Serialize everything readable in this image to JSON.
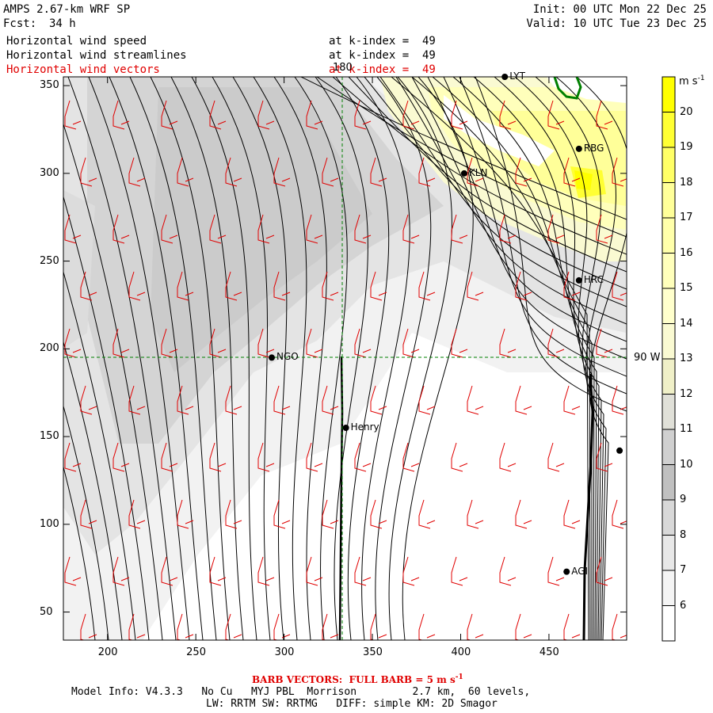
{
  "header": {
    "model": "AMPS 2.67-km WRF SP",
    "fcst_label": "Fcst:",
    "fcst_value": "34 h",
    "init": "Init: 00 UTC Mon 22 Dec 25",
    "valid": "Valid: 10 UTC Tue 23 Dec 25",
    "fields": [
      {
        "name": "Horizontal wind speed",
        "level": "at k-index =  49",
        "color": "#000000"
      },
      {
        "name": "Horizontal wind streamlines",
        "level": "at k-index =  49",
        "color": "#000000"
      },
      {
        "name": "Horizontal wind vectors",
        "level": "at k-index =  49",
        "color": "#e00000"
      }
    ]
  },
  "map": {
    "x_ticks": [
      "200",
      "250",
      "300",
      "350",
      "400",
      "450"
    ],
    "y_ticks": [
      "350",
      "300",
      "250",
      "200",
      "150",
      "100",
      "50"
    ],
    "meridian_label": "180",
    "parallel_label": "90 W",
    "stations": [
      {
        "id": "LYT",
        "label": "LYT",
        "x": 425,
        "y": 355
      },
      {
        "id": "RBG",
        "label": "RBG",
        "x": 467,
        "y": 314
      },
      {
        "id": "KLN",
        "label": "KLN",
        "x": 402,
        "y": 300
      },
      {
        "id": "HRC",
        "label": "HRC",
        "x": 467,
        "y": 239
      },
      {
        "id": "NGO",
        "label": "NGO",
        "x": 293,
        "y": 195
      },
      {
        "id": "Henry",
        "label": "Henry",
        "x": 335,
        "y": 155
      },
      {
        "id": "AGI",
        "label": "AGI",
        "x": 460,
        "y": 73
      },
      {
        "id": "east",
        "label": "",
        "x": 490,
        "y": 142
      }
    ]
  },
  "colorbar": {
    "unit": "m s",
    "unit_exp": "-1",
    "levels": [
      "20",
      "19",
      "18",
      "17",
      "16",
      "15",
      "14",
      "13",
      "12",
      "11",
      "10",
      "9",
      "8",
      "7",
      "6"
    ],
    "colors": [
      "#ffff00",
      "#ffff33",
      "#ffff66",
      "#ffff99",
      "#ffffaa",
      "#ffffbb",
      "#ffffcc",
      "#fafad2",
      "#f0f0c8",
      "#e0e0d8",
      "#d0d0d0",
      "#c0c0c0",
      "#d8d8d8",
      "#e8e8e8",
      "#f4f4f4",
      "#ffffff"
    ]
  },
  "footer": {
    "barb_note": "BARB VECTORS:  FULL BARB = 5 m s",
    "barb_exp": "-1",
    "line1": "Model Info: V4.3.3   No Cu   MYJ PBL  Morrison         2.7 km,  60 levels,",
    "line2": "LW: RRTM SW: RRTMG   DIFF: simple KM: 2D Smagor"
  }
}
